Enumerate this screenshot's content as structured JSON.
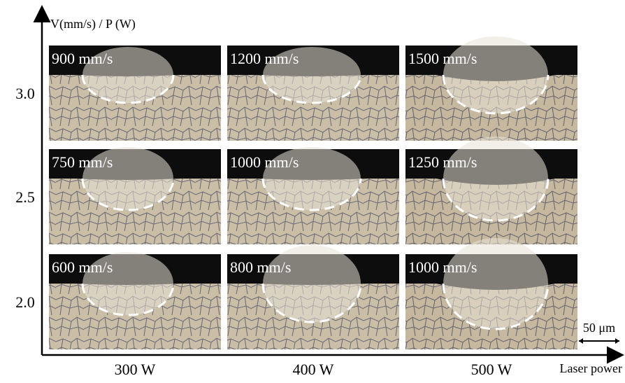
{
  "axes": {
    "y_label": "V(mm/s) / P (W)",
    "x_label": "Laser power"
  },
  "rows": [
    "3.0",
    "2.5",
    "2.0"
  ],
  "columns": [
    "300 W",
    "400 W",
    "500 W"
  ],
  "panels": [
    [
      "900 mm/s",
      "1200 mm/s",
      "1500 mm/s"
    ],
    [
      "750 mm/s",
      "1000 mm/s",
      "1250 mm/s"
    ],
    [
      "600 mm/s",
      "800 mm/s",
      "1000 mm/s"
    ]
  ],
  "scale_bar": "50 μm"
}
